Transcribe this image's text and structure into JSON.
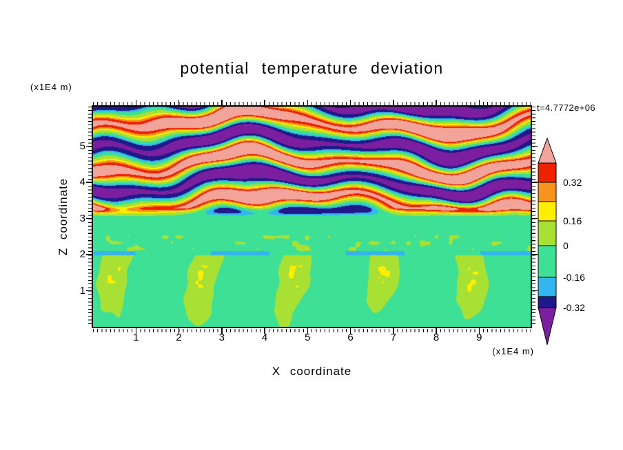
{
  "chart_data": {
    "type": "heatmap",
    "title": "potential temperature deviation",
    "xlabel": "X coordinate",
    "ylabel": "Z coordinate",
    "x_unit": "(x1E4 m)",
    "y_unit": "(x1E4 m)",
    "time_annotation": "t=4.7772e+06",
    "x_ticks": [
      1,
      2,
      3,
      4,
      5,
      6,
      7,
      8,
      9
    ],
    "y_ticks": [
      1,
      2,
      3,
      4,
      5
    ],
    "x_range": [
      0,
      10.2
    ],
    "y_range": [
      0,
      6.1
    ],
    "grid": false,
    "colorbar": {
      "orientation": "vertical-right",
      "labels": [
        "0.32",
        "0.16",
        "0",
        "-0.16",
        "-0.32"
      ],
      "levels": [
        0.32,
        0.16,
        0,
        -0.16,
        -0.32
      ],
      "colors": {
        "salmon": "#F2A49B",
        "red": "#EE2200",
        "orange": "#F79420",
        "yellow": "#FFEE00",
        "chartreuse": "#A8E034",
        "spring_green": "#3EE096",
        "cyan": "#33B5F0",
        "navy": "#201989",
        "purple": "#7B1FA0"
      }
    },
    "field_description": {
      "upper_region": "z > 3.2: alternating wavy horizontal bands of strong positive (salmon/red, > +0.32) and strong negative (purple/navy, < -0.32) deviation with thin rainbow transition layers (gravity-wave pattern)",
      "middle_region": "2.1 < z < 3.2: near-zero slightly negative deviation (spring green) with sparse small positive speckles (yellow-green) near z = 2.3",
      "interface": "thin intermittent negative layer (cyan dashes) near z = 2.0",
      "lower_region": "z < 2.0: convective plumes of weak positive deviation (yellow-green, ~5 plumes across domain) rising through spring-green near-zero background"
    }
  }
}
